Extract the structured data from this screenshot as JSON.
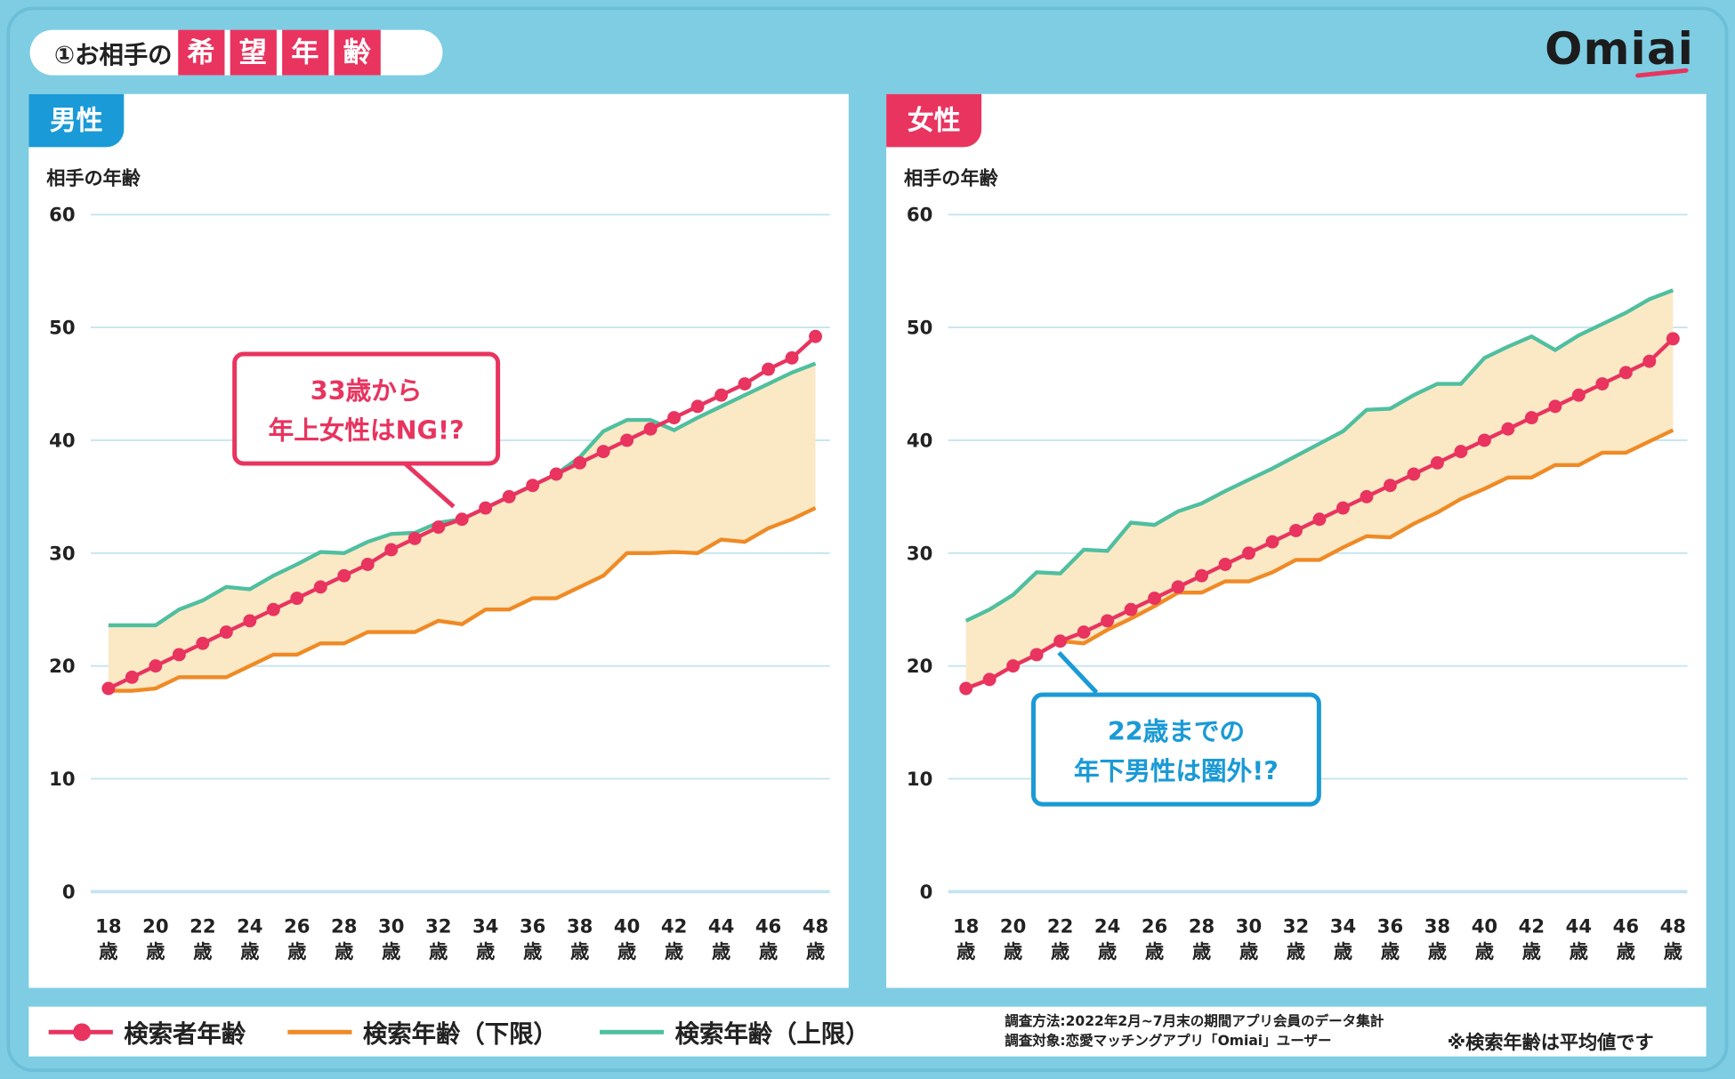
{
  "header": {
    "title_prefix": "①お相手の",
    "title_highlight": [
      "希",
      "望",
      "年",
      "齢"
    ],
    "logo": "Omiai"
  },
  "colors": {
    "searcher": "#e8345f",
    "lower": "#ef8a25",
    "upper": "#4fbf9f",
    "band": "#fbe9c6",
    "grid": "#c4e4ef",
    "male": "#1a9ad6",
    "female": "#e8345f",
    "bg": "#7ecde3"
  },
  "legend": {
    "searcher": "検索者年齢",
    "lower": "検索年齢（下限）",
    "upper": "検索年齢（上限）"
  },
  "footnotes": {
    "method": "調査方法:2022年2月~7月末の期間アプリ会員のデータ集計",
    "target": "調査対象:恋愛マッチングアプリ「Omiai」ユーザー",
    "note": "※検索年齢は平均値です"
  },
  "chart_data": [
    {
      "type": "line",
      "panel": "男性",
      "ylabel": "相手の年齢",
      "ylim": [
        0,
        60
      ],
      "yticks": [
        "0",
        "10",
        "20",
        "30",
        "40",
        "50",
        "60"
      ],
      "xtick_labels": [
        "18",
        "20",
        "22",
        "24",
        "26",
        "28",
        "30",
        "32",
        "34",
        "36",
        "38",
        "40",
        "42",
        "44",
        "46",
        "48"
      ],
      "xtick_unit": "歳",
      "x": [
        18,
        19,
        20,
        21,
        22,
        23,
        24,
        25,
        26,
        27,
        28,
        29,
        30,
        31,
        32,
        33,
        34,
        35,
        36,
        37,
        38,
        39,
        40,
        41,
        42,
        43,
        44,
        45,
        46,
        47,
        48
      ],
      "series": [
        {
          "name": "検索者年齢",
          "values": [
            18,
            19,
            20,
            21,
            22,
            23,
            24,
            25,
            26,
            27,
            28,
            29,
            30.3,
            31.3,
            32.3,
            33,
            34,
            35,
            36,
            37,
            38,
            39,
            40,
            41,
            42,
            43,
            44,
            45,
            46.3,
            47.3,
            49.2
          ]
        },
        {
          "name": "検索年齢（下限）",
          "values": [
            17.8,
            17.8,
            18,
            19,
            19,
            19,
            20,
            21,
            21,
            22,
            22,
            23,
            23,
            23,
            24,
            23.7,
            25,
            25,
            26,
            26,
            27,
            28,
            30,
            30,
            30.1,
            30,
            31.2,
            31,
            32.2,
            33,
            34
          ]
        },
        {
          "name": "検索年齢（上限）",
          "values": [
            23.6,
            23.6,
            23.6,
            25,
            25.8,
            27,
            26.8,
            28,
            29,
            30.1,
            30,
            31,
            31.7,
            31.8,
            32.7,
            33,
            34,
            35,
            36,
            37,
            38.5,
            40.8,
            41.8,
            41.8,
            40.9,
            42,
            43,
            44,
            45,
            46,
            46.8
          ]
        }
      ],
      "annotation": [
        "33歳から",
        "年上女性はNG!?"
      ]
    },
    {
      "type": "line",
      "panel": "女性",
      "ylabel": "相手の年齢",
      "ylim": [
        0,
        60
      ],
      "yticks": [
        "0",
        "10",
        "20",
        "30",
        "40",
        "50",
        "60"
      ],
      "xtick_labels": [
        "18",
        "20",
        "22",
        "24",
        "26",
        "28",
        "30",
        "32",
        "34",
        "36",
        "38",
        "40",
        "42",
        "44",
        "46",
        "48"
      ],
      "xtick_unit": "歳",
      "x": [
        18,
        19,
        20,
        21,
        22,
        23,
        24,
        25,
        26,
        27,
        28,
        29,
        30,
        31,
        32,
        33,
        34,
        35,
        36,
        37,
        38,
        39,
        40,
        41,
        42,
        43,
        44,
        45,
        46,
        47,
        48
      ],
      "series": [
        {
          "name": "検索者年齢",
          "values": [
            18,
            18.8,
            20,
            21,
            22.2,
            23,
            24,
            25,
            26,
            27,
            28,
            29,
            30,
            31,
            32,
            33,
            34,
            35,
            36,
            37,
            38,
            39,
            40,
            41,
            42,
            43,
            44,
            45,
            46,
            47,
            49
          ]
        },
        {
          "name": "検索年齢（下限）",
          "values": [
            18,
            18.8,
            20,
            21,
            22.2,
            22,
            23.2,
            24.2,
            25.3,
            26.5,
            26.5,
            27.5,
            27.5,
            28.3,
            29.4,
            29.4,
            30.5,
            31.5,
            31.4,
            32.6,
            33.6,
            34.8,
            35.7,
            36.7,
            36.7,
            37.8,
            37.8,
            38.9,
            38.9,
            39.9,
            40.9
          ]
        },
        {
          "name": "検索年齢（上限）",
          "values": [
            24,
            25,
            26.3,
            28.3,
            28.2,
            30.3,
            30.2,
            32.7,
            32.5,
            33.7,
            34.4,
            35.5,
            36.5,
            37.5,
            38.6,
            39.7,
            40.8,
            42.7,
            42.8,
            44,
            45,
            45,
            47.3,
            48.3,
            49.2,
            48,
            49.3,
            50.3,
            51.3,
            52.5,
            53.3
          ]
        }
      ],
      "annotation": [
        "22歳までの",
        "年下男性は圏外!?"
      ]
    }
  ]
}
